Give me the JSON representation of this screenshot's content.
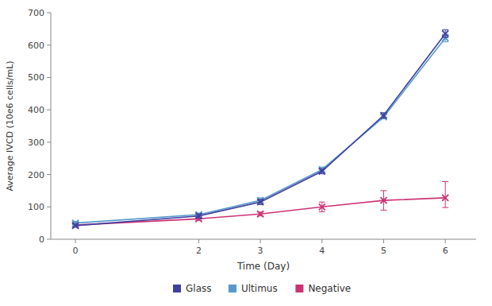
{
  "chart_data": {
    "type": "line",
    "title": "",
    "xlabel": "Time (Day)",
    "ylabel": "Average IVCD (10e6 cells/mL)",
    "x": [
      0,
      2,
      3,
      4,
      5,
      6
    ],
    "xlim": [
      -0.4,
      6.5
    ],
    "ylim": [
      0,
      700
    ],
    "xticks": [
      0,
      2,
      3,
      4,
      5,
      6
    ],
    "yticks": [
      0,
      100,
      200,
      300,
      400,
      500,
      600,
      700
    ],
    "grid": false,
    "legend": "bottom",
    "series": [
      {
        "name": "Glass",
        "color": "#4040a0",
        "marker": "x",
        "line_style": "solid",
        "values": [
          42,
          72,
          115,
          210,
          383,
          635
        ],
        "yerr_low": [
          5,
          6,
          8,
          8,
          8,
          12
        ],
        "yerr_high": [
          5,
          6,
          8,
          8,
          8,
          12
        ]
      },
      {
        "name": "Ultimus",
        "color": "#5599cc",
        "marker": "x",
        "line_style": "solid",
        "values": [
          50,
          76,
          120,
          215,
          378,
          622
        ],
        "yerr_low": [
          5,
          5,
          8,
          8,
          6,
          12
        ],
        "yerr_high": [
          5,
          5,
          8,
          8,
          6,
          12
        ]
      },
      {
        "name": "Negative",
        "color": "#cc3377",
        "marker": "x",
        "line_style": "solid",
        "values": [
          44,
          63,
          78,
          100,
          120,
          128
        ],
        "yerr_low": [
          4,
          5,
          6,
          15,
          30,
          30
        ],
        "yerr_high": [
          4,
          5,
          6,
          15,
          30,
          50
        ]
      }
    ]
  }
}
